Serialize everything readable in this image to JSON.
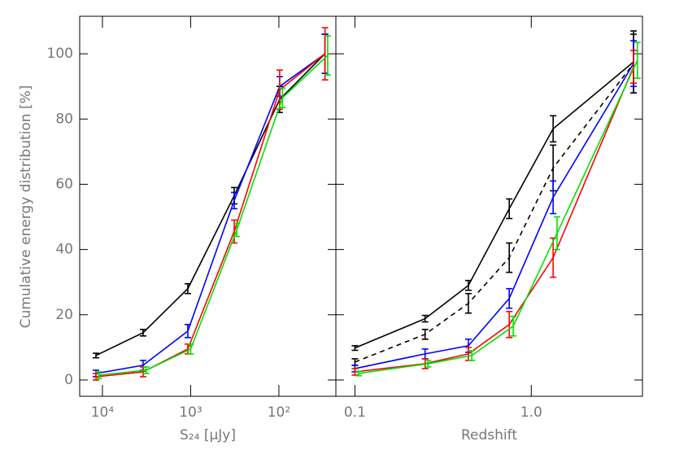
{
  "chart_data": [
    {
      "type": "line",
      "xlabel": "S₂₄  [μJy]",
      "ylabel": "Cumulative energy distribution [%]",
      "xlog": true,
      "xlim": [
        18100,
        22.6
      ],
      "xticks": [
        {
          "value": 10000,
          "label": "10⁴"
        },
        {
          "value": 1000,
          "label": "10³"
        },
        {
          "value": 100,
          "label": "10²"
        }
      ],
      "ylim": [
        -5,
        111.5
      ],
      "yticks": [
        0,
        20,
        40,
        60,
        80,
        100
      ],
      "ytick_labels": true,
      "series": [
        {
          "color": "#000000",
          "dash": false,
          "x": [
            11850,
            3460,
            1077,
            321,
            98,
            30
          ],
          "values": [
            7.5,
            14.5,
            28,
            56.5,
            86,
            100
          ],
          "errors": [
            0.7,
            1,
            1.5,
            2.5,
            4,
            6
          ]
        },
        {
          "color": "#0000ff",
          "dash": false,
          "x": [
            11850,
            3460,
            1077,
            321,
            98,
            30
          ],
          "values": [
            2,
            4.5,
            15,
            55,
            90,
            100
          ],
          "errors": [
            1,
            1.5,
            2,
            2.5,
            3,
            6
          ]
        },
        {
          "color": "#ff0000",
          "dash": false,
          "x": [
            11850,
            3460,
            1077,
            321,
            98,
            30
          ],
          "values": [
            1,
            2.5,
            9.5,
            45.5,
            89,
            100
          ],
          "errors": [
            1,
            1.5,
            1.5,
            3.5,
            6,
            8
          ]
        },
        {
          "color": "#00e000",
          "dash": false,
          "x": [
            11000,
            3200,
            1000,
            300,
            91,
            28
          ],
          "values": [
            1.5,
            3,
            9.5,
            46,
            86.5,
            99.5
          ],
          "errors": [
            1,
            1,
            1.5,
            2,
            3,
            6
          ]
        }
      ]
    },
    {
      "type": "line",
      "xlabel": "Redshift",
      "xlog": true,
      "xlim": [
        0.078,
        4.27
      ],
      "xticks": [
        0.1,
        {
          "value": 1,
          "label": "1.0"
        }
      ],
      "ylim": [
        -5,
        111.5
      ],
      "yticks": [
        0,
        20,
        40,
        60,
        80,
        100
      ],
      "ytick_labels": false,
      "series": [
        {
          "color": "#000000",
          "dash": false,
          "x": [
            0.1,
            0.25,
            0.44,
            0.75,
            1.33,
            3.8
          ],
          "values": [
            9.8,
            18.8,
            29,
            52.5,
            77,
            97.5
          ],
          "errors": [
            0.7,
            1,
            1.5,
            3,
            4,
            9.5
          ]
        },
        {
          "color": "#000000",
          "dash": true,
          "x": [
            0.1,
            0.25,
            0.44,
            0.75,
            1.33,
            3.8
          ],
          "values": [
            5.5,
            14,
            23.5,
            37.5,
            65,
            97
          ],
          "errors": [
            1,
            1.5,
            3,
            4.5,
            7,
            9
          ]
        },
        {
          "color": "#0000ff",
          "dash": false,
          "x": [
            0.1,
            0.25,
            0.44,
            0.75,
            1.33,
            3.8
          ],
          "values": [
            3.5,
            8,
            10.5,
            25,
            56,
            97
          ],
          "errors": [
            1,
            1.5,
            2,
            3,
            5,
            7
          ]
        },
        {
          "color": "#ff0000",
          "dash": false,
          "x": [
            0.1,
            0.25,
            0.44,
            0.75,
            1.33,
            3.8
          ],
          "values": [
            2.5,
            5,
            8,
            17,
            37.5,
            96
          ],
          "errors": [
            1,
            1.5,
            2,
            4,
            6,
            5
          ]
        },
        {
          "color": "#00e000",
          "dash": false,
          "x": [
            0.105,
            0.26,
            0.46,
            0.79,
            1.4,
            4.0
          ],
          "values": [
            2,
            5,
            7.5,
            16.5,
            45,
            98
          ],
          "errors": [
            0.7,
            1,
            1.5,
            3,
            5,
            5.5
          ]
        }
      ]
    }
  ]
}
